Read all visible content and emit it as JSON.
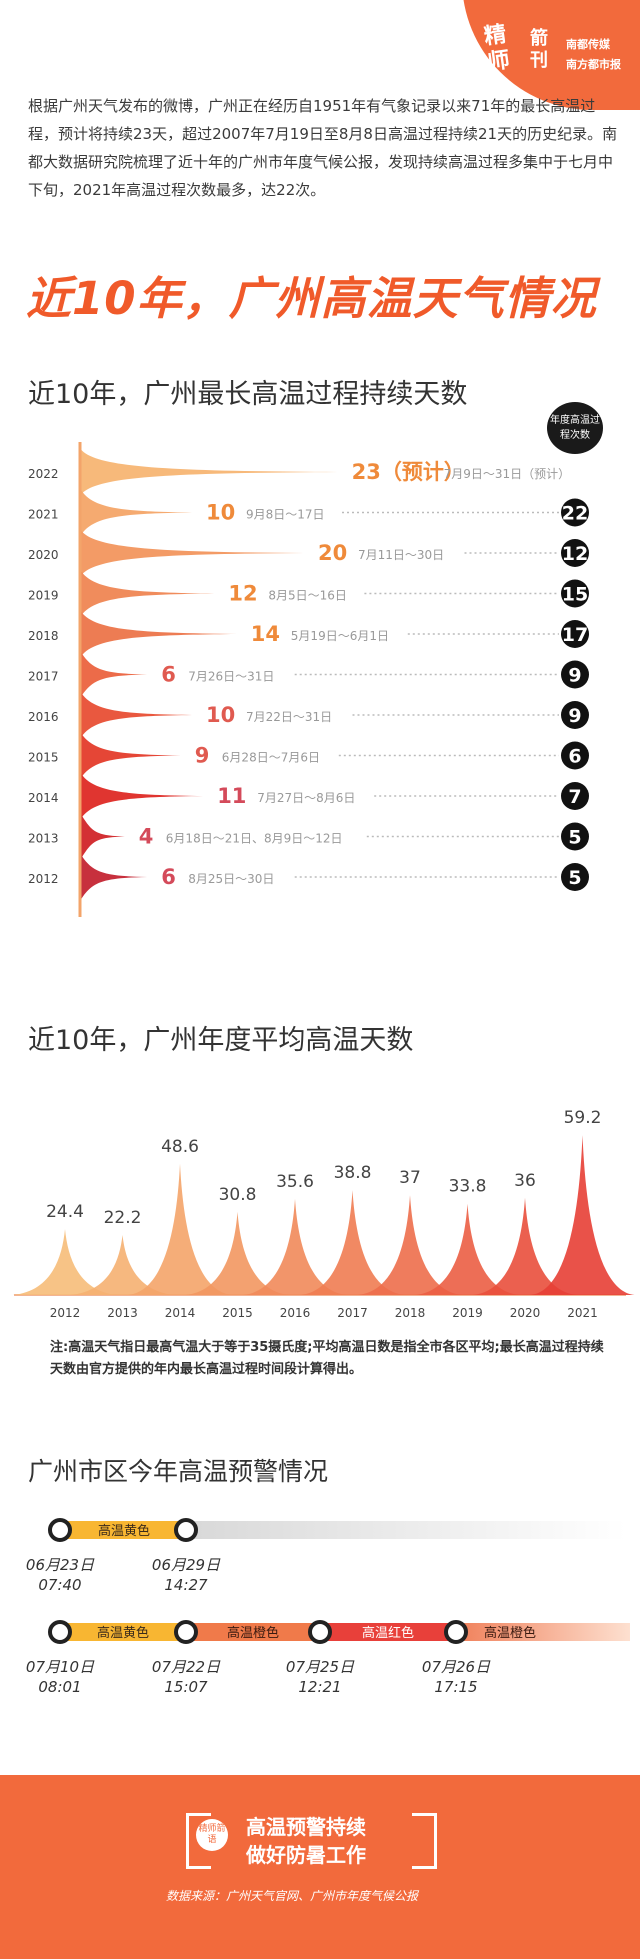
{
  "brand": {
    "badge": "精师",
    "sub": "箭刊",
    "media1": "南都传媒",
    "media2": "南方都市报"
  },
  "intro": "根据广州天气发布的微博，广州正在经历自1951年有气象记录以来71年的最长高温过程，预计将持续23天，超过2007年7月19日至8月8日高温过程持续21天的历史纪录。南都大数据研究院梳理了近十年的广州市年度气候公报，发现持续高温过程多集中于七月中下旬，2021年高温过程次数最多，达22次。",
  "main_title": "近10年，广州高温天气情况",
  "section1_title": "近10年，广州最长高温过程持续天数",
  "column_header": "年度高温过程次数",
  "section2_title": "近10年，广州年度平均高温天数",
  "section3_title": "广州市区今年高温预警情况",
  "note": "注:高温天气指日最高气温大于等于35摄氏度;平均高温日数是指全市各区平均;最长高温过程持续天数由官方提供的年内最长高温过程时间段计算得出。",
  "colors": {
    "accent": "#f05a2a",
    "light": "#fbc08a",
    "dark": "#d44a5a"
  },
  "chart_data": [
    {
      "type": "bar",
      "title": "近10年，广州最长高温过程持续天数",
      "categories": [
        "2022",
        "2021",
        "2020",
        "2019",
        "2018",
        "2017",
        "2016",
        "2015",
        "2014",
        "2013",
        "2012"
      ],
      "series": [
        {
          "values": [
            23,
            10,
            20,
            12,
            14,
            6,
            10,
            9,
            11,
            4,
            6
          ]
        },
        {
          "name": "年度高温过程次数",
          "values": [
            null,
            22,
            12,
            15,
            17,
            9,
            9,
            6,
            7,
            5,
            5
          ]
        }
      ],
      "value_labels": [
        "23（预计）",
        "10",
        "20",
        "12",
        "14",
        "6",
        "10",
        "9",
        "11",
        "4",
        "6"
      ],
      "period_labels": [
        "7月9日～31日（预计）",
        "9月8日～17日",
        "7月11日～30日",
        "8月5日～16日",
        "5月19日～6月1日",
        "7月26日～31日",
        "7月22日～31日",
        "6月28日～7月6日",
        "7月27日～8月6日",
        "6月18日～21日、8月9日～12日",
        "8月25日～30日"
      ]
    },
    {
      "type": "bar",
      "title": "近10年，广州年度平均高温天数",
      "categories": [
        "2012",
        "2013",
        "2014",
        "2015",
        "2016",
        "2017",
        "2018",
        "2019",
        "2020",
        "2021"
      ],
      "values": [
        24.4,
        22.2,
        48.6,
        30.8,
        35.6,
        38.8,
        37,
        33.8,
        36,
        59.2
      ]
    }
  ],
  "warnings": {
    "row1": {
      "segments": [
        "高温黄色"
      ],
      "dates": [
        {
          "d": "06月23日",
          "t": "07:40"
        },
        {
          "d": "06月29日",
          "t": "14:27"
        }
      ]
    },
    "row2": {
      "segments": [
        "高温黄色",
        "高温橙色",
        "高温红色",
        "高温橙色"
      ],
      "dates": [
        {
          "d": "07月10日",
          "t": "08:01"
        },
        {
          "d": "07月22日",
          "t": "15:07"
        },
        {
          "d": "07月25日",
          "t": "12:21"
        },
        {
          "d": "07月26日",
          "t": "17:15"
        }
      ]
    }
  },
  "footer": {
    "badge": "精师箭语",
    "line1": "高温预警持续",
    "line2": "做好防暑工作",
    "source": "数据来源：广州天气官网、广州市年度气候公报"
  }
}
